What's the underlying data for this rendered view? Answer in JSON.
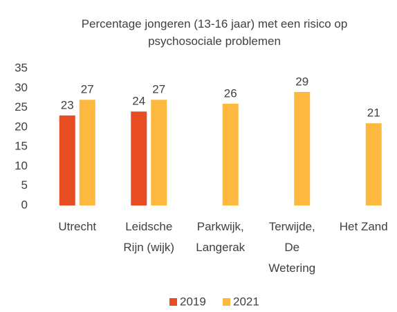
{
  "chart_data": {
    "type": "bar",
    "title": "Percentage jongeren (13-16 jaar) met een risico op psychosociale problemen",
    "categories": [
      "Utrecht",
      "Leidsche Rijn (wijk)",
      "Parkwijk, Langerak",
      "Terwijde, De Wetering",
      "Het Zand"
    ],
    "series": [
      {
        "name": "2019",
        "color": "#e84c22",
        "values": [
          23,
          24,
          null,
          null,
          null
        ]
      },
      {
        "name": "2021",
        "color": "#fdb840",
        "values": [
          27,
          27,
          26,
          29,
          21
        ]
      }
    ],
    "ylim": [
      0,
      35
    ],
    "yticks": [
      0,
      5,
      10,
      15,
      20,
      25,
      30,
      35
    ],
    "grid": false,
    "legend": "bottom"
  }
}
